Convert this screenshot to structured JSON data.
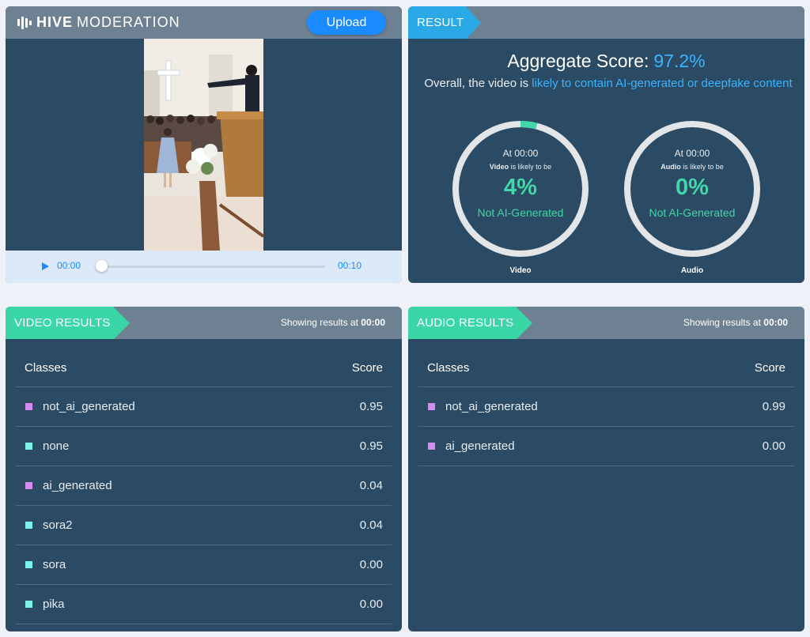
{
  "brand": {
    "bold": "HIVE",
    "rest": "MODERATION"
  },
  "upload_label": "Upload",
  "player": {
    "time_current": "00:00",
    "time_total": "00:10"
  },
  "result": {
    "tag": "RESULT",
    "aggregate_label": "Aggregate Score:",
    "aggregate_value": "97.2%",
    "summary_prefix": "Overall, the video is",
    "summary_highlight": "likely to contain AI-generated or deepfake content",
    "gauges": [
      {
        "time": "At 00:00",
        "subject": "Video",
        "likely": "is likely to be",
        "percent": "4%",
        "fraction": 0.04,
        "verdict": "Not AI-Generated",
        "label": "Video"
      },
      {
        "time": "At 00:00",
        "subject": "Audio",
        "likely": "is likely to be",
        "percent": "0%",
        "fraction": 0.0,
        "verdict": "Not AI-Generated",
        "label": "Audio"
      }
    ]
  },
  "video_results": {
    "tag": "VIDEO RESULTS",
    "showing_prefix": "Showing results at",
    "showing_time": "00:00",
    "col_class": "Classes",
    "col_score": "Score",
    "rows": [
      {
        "name": "not_ai_generated",
        "score": "0.95",
        "color": "#d58cf0"
      },
      {
        "name": "none",
        "score": "0.95",
        "color": "#7ef3ea"
      },
      {
        "name": "ai_generated",
        "score": "0.04",
        "color": "#d58cf0"
      },
      {
        "name": "sora2",
        "score": "0.04",
        "color": "#7ef3ea"
      },
      {
        "name": "sora",
        "score": "0.00",
        "color": "#7ef3ea"
      },
      {
        "name": "pika",
        "score": "0.00",
        "color": "#7ef3ea"
      }
    ]
  },
  "audio_results": {
    "tag": "AUDIO RESULTS",
    "showing_prefix": "Showing results at",
    "showing_time": "00:00",
    "col_class": "Classes",
    "col_score": "Score",
    "rows": [
      {
        "name": "not_ai_generated",
        "score": "0.99",
        "color": "#d58cf0"
      },
      {
        "name": "ai_generated",
        "score": "0.00",
        "color": "#d58cf0"
      }
    ]
  },
  "colors": {
    "accent": "#1a8cff",
    "highlight": "#3ab4ff",
    "green": "#43d6a8",
    "panel": "#2b4a63"
  }
}
